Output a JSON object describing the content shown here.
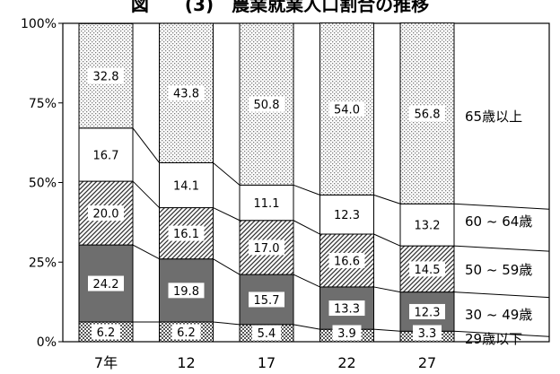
{
  "chart_data": {
    "type": "bar",
    "stacked": true,
    "title": "図　　(3)　農業就業人口割合の推移",
    "categories": [
      "7年",
      "12",
      "17",
      "22",
      "27"
    ],
    "ylim": [
      0,
      100
    ],
    "yticks": [
      "0%",
      "25%",
      "50%",
      "75%",
      "100%"
    ],
    "grid": false,
    "legend_position": "right",
    "series": [
      {
        "name": "29歳以下",
        "values": [
          6.2,
          6.2,
          5.4,
          3.9,
          3.3
        ],
        "pattern": "checker"
      },
      {
        "name": "30 ~ 49歳",
        "values": [
          24.2,
          19.8,
          15.7,
          13.3,
          12.3
        ],
        "pattern": "solid-gray"
      },
      {
        "name": "50 ~ 59歳",
        "values": [
          20.0,
          16.1,
          17.0,
          16.6,
          14.5
        ],
        "pattern": "diagonal"
      },
      {
        "name": "60 ~ 64歳",
        "values": [
          16.7,
          14.1,
          11.1,
          12.3,
          13.2
        ],
        "pattern": "white"
      },
      {
        "name": "65歳以上",
        "values": [
          32.8,
          43.8,
          50.8,
          54.0,
          56.8
        ],
        "pattern": "dots"
      }
    ],
    "data_labels": [
      [
        "6.2",
        "6.2",
        "5.4",
        "3.9",
        "3.3"
      ],
      [
        "24.2",
        "19.8",
        "15.7",
        "13.3",
        "12.3"
      ],
      [
        "20.0",
        "16.1",
        "17.0",
        "16.6",
        "14.5"
      ],
      [
        "16.7",
        "14.1",
        "11.1",
        "12.3",
        "13.2"
      ],
      [
        "32.8",
        "43.8",
        "50.8",
        "54.0",
        "56.8"
      ]
    ],
    "colors": {
      "bar_border": "#000000",
      "solid_gray": "#6e6e6e"
    }
  }
}
